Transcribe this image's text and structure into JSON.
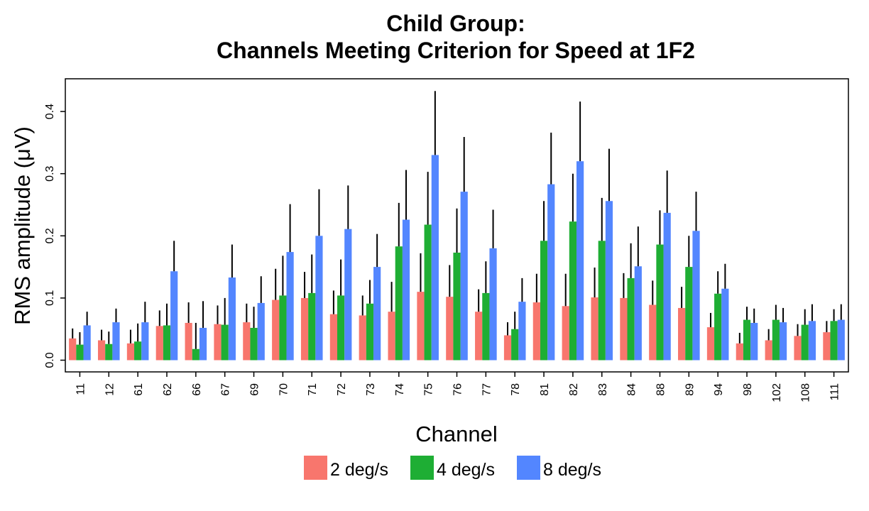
{
  "chart_data": {
    "type": "bar",
    "title": [
      "Child Group:",
      "Channels Meeting Criterion for Speed at 1F2"
    ],
    "xlabel": "Channel",
    "ylabel": "RMS amplitude (μV)",
    "ylim": [
      -0.015,
      0.45
    ],
    "yticks": [
      0.0,
      0.1,
      0.2,
      0.3,
      0.4
    ],
    "ytick_labels": [
      "0.0",
      "0.1",
      "0.2",
      "0.3",
      "0.4"
    ],
    "legend_position": "bottom",
    "grid": false,
    "error_bars": true,
    "categories": [
      "11",
      "12",
      "61",
      "62",
      "66",
      "67",
      "69",
      "70",
      "71",
      "72",
      "73",
      "74",
      "75",
      "76",
      "77",
      "78",
      "81",
      "82",
      "83",
      "84",
      "88",
      "89",
      "94",
      "98",
      "102",
      "108",
      "111"
    ],
    "series": [
      {
        "name": "2 deg/s",
        "color": "#F8766D",
        "values": [
          0.035,
          0.032,
          0.027,
          0.055,
          0.06,
          0.058,
          0.061,
          0.097,
          0.1,
          0.074,
          0.072,
          0.078,
          0.11,
          0.102,
          0.078,
          0.04,
          0.093,
          0.087,
          0.101,
          0.1,
          0.089,
          0.084,
          0.053,
          0.027,
          0.032,
          0.039,
          0.045
        ],
        "err_upper": [
          0.051,
          0.049,
          0.049,
          0.08,
          0.093,
          0.088,
          0.091,
          0.147,
          0.142,
          0.112,
          0.104,
          0.126,
          0.172,
          0.153,
          0.114,
          0.061,
          0.139,
          0.139,
          0.149,
          0.14,
          0.128,
          0.118,
          0.076,
          0.044,
          0.05,
          0.058,
          0.063
        ]
      },
      {
        "name": "4 deg/s",
        "color": "#1EAE34",
        "values": [
          0.025,
          0.026,
          0.03,
          0.056,
          0.018,
          0.057,
          0.052,
          0.104,
          0.108,
          0.104,
          0.091,
          0.183,
          0.218,
          0.173,
          0.108,
          0.05,
          0.192,
          0.223,
          0.192,
          0.132,
          0.186,
          0.15,
          0.107,
          0.065,
          0.065,
          0.057,
          0.063
        ],
        "err_upper": [
          0.045,
          0.046,
          0.059,
          0.091,
          0.06,
          0.1,
          0.086,
          0.168,
          0.17,
          0.162,
          0.129,
          0.253,
          0.303,
          0.244,
          0.159,
          0.078,
          0.256,
          0.3,
          0.261,
          0.188,
          0.241,
          0.2,
          0.143,
          0.086,
          0.089,
          0.082,
          0.082
        ]
      },
      {
        "name": "8 deg/s",
        "color": "#5386FF",
        "values": [
          0.056,
          0.061,
          0.061,
          0.143,
          0.052,
          0.133,
          0.092,
          0.174,
          0.2,
          0.211,
          0.15,
          0.226,
          0.33,
          0.271,
          0.18,
          0.094,
          0.283,
          0.32,
          0.256,
          0.151,
          0.237,
          0.208,
          0.115,
          0.06,
          0.061,
          0.063,
          0.065
        ],
        "err_upper": [
          0.078,
          0.083,
          0.094,
          0.192,
          0.095,
          0.186,
          0.135,
          0.251,
          0.275,
          0.281,
          0.203,
          0.306,
          0.433,
          0.359,
          0.242,
          0.132,
          0.366,
          0.416,
          0.34,
          0.215,
          0.305,
          0.271,
          0.155,
          0.083,
          0.084,
          0.09,
          0.09
        ]
      }
    ]
  }
}
